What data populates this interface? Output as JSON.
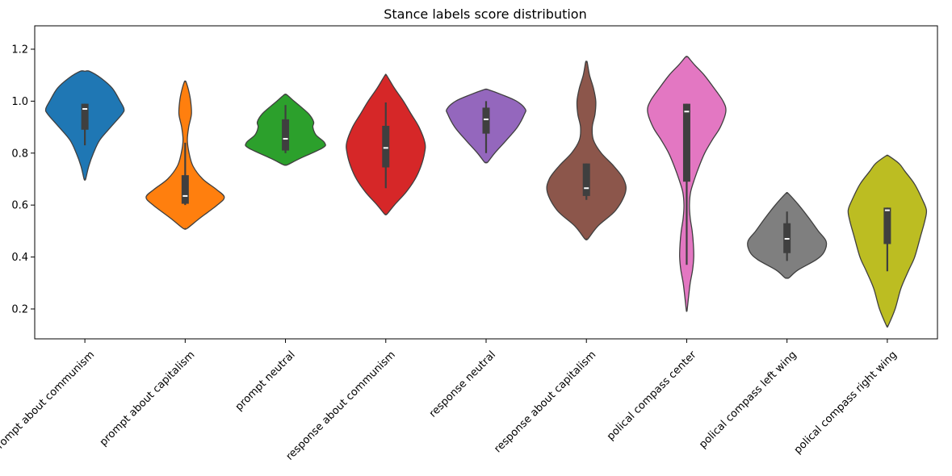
{
  "chart_data": {
    "type": "violin",
    "title": "Stance labels score distribution",
    "xlabel": "",
    "ylabel": "",
    "ylim": [
      0.085,
      1.29
    ],
    "yticks": [
      0.2,
      0.4,
      0.6,
      0.8,
      1.0,
      1.2
    ],
    "ytick_labels": [
      "0.2",
      "0.4",
      "0.6",
      "0.8",
      "1.0",
      "1.2"
    ],
    "grid": false,
    "categories": [
      "prompt about communism",
      "prompt about capitalism",
      "prompt neutral",
      "response about communism",
      "response neutral",
      "response about capitalism",
      "polical compass center",
      "polical compass left wing",
      "polical compass right wing"
    ],
    "series": [
      {
        "color": "#1f77b4",
        "min": 0.7,
        "max": 1.115,
        "whisker_low": 0.83,
        "q1": 0.89,
        "median": 0.97,
        "q3": 0.99,
        "whisker_high": 0.99,
        "density": [
          [
            0.7,
            0.02
          ],
          [
            0.75,
            0.1
          ],
          [
            0.8,
            0.22
          ],
          [
            0.85,
            0.38
          ],
          [
            0.9,
            0.66
          ],
          [
            0.95,
            0.95
          ],
          [
            0.97,
            1.0
          ],
          [
            1.0,
            0.9
          ],
          [
            1.05,
            0.7
          ],
          [
            1.09,
            0.4
          ],
          [
            1.115,
            0.12
          ]
        ]
      },
      {
        "color": "#ff7f0e",
        "min": 0.51,
        "max": 1.075,
        "whisker_low": 0.6,
        "q1": 0.605,
        "median": 0.635,
        "q3": 0.715,
        "whisker_high": 0.84,
        "density": [
          [
            0.51,
            0.05
          ],
          [
            0.55,
            0.38
          ],
          [
            0.6,
            0.82
          ],
          [
            0.63,
            1.0
          ],
          [
            0.66,
            0.8
          ],
          [
            0.7,
            0.45
          ],
          [
            0.75,
            0.2
          ],
          [
            0.8,
            0.1
          ],
          [
            0.85,
            0.055
          ],
          [
            0.9,
            0.09
          ],
          [
            0.95,
            0.16
          ],
          [
            1.0,
            0.14
          ],
          [
            1.04,
            0.09
          ],
          [
            1.075,
            0.02
          ]
        ]
      },
      {
        "color": "#2ca02c",
        "min": 0.755,
        "max": 1.025,
        "whisker_low": 0.8,
        "q1": 0.81,
        "median": 0.855,
        "q3": 0.93,
        "whisker_high": 0.985,
        "density": [
          [
            0.755,
            0.05
          ],
          [
            0.78,
            0.38
          ],
          [
            0.82,
            0.95
          ],
          [
            0.84,
            1.0
          ],
          [
            0.87,
            0.78
          ],
          [
            0.9,
            0.7
          ],
          [
            0.92,
            0.72
          ],
          [
            0.95,
            0.6
          ],
          [
            0.98,
            0.38
          ],
          [
            1.0,
            0.22
          ],
          [
            1.025,
            0.03
          ]
        ]
      },
      {
        "color": "#d62728",
        "min": 0.565,
        "max": 1.1,
        "whisker_low": 0.665,
        "q1": 0.745,
        "median": 0.82,
        "q3": 0.905,
        "whisker_high": 0.995,
        "density": [
          [
            0.565,
            0.03
          ],
          [
            0.6,
            0.22
          ],
          [
            0.65,
            0.52
          ],
          [
            0.7,
            0.75
          ],
          [
            0.75,
            0.9
          ],
          [
            0.8,
            0.99
          ],
          [
            0.84,
            1.0
          ],
          [
            0.9,
            0.85
          ],
          [
            0.95,
            0.65
          ],
          [
            1.0,
            0.45
          ],
          [
            1.05,
            0.22
          ],
          [
            1.1,
            0.02
          ]
        ]
      },
      {
        "color": "#9467bd",
        "min": 0.765,
        "max": 1.045,
        "whisker_low": 0.8,
        "q1": 0.875,
        "median": 0.93,
        "q3": 0.975,
        "whisker_high": 1.0,
        "density": [
          [
            0.765,
            0.04
          ],
          [
            0.8,
            0.22
          ],
          [
            0.85,
            0.52
          ],
          [
            0.9,
            0.8
          ],
          [
            0.95,
            0.98
          ],
          [
            0.97,
            1.0
          ],
          [
            1.0,
            0.78
          ],
          [
            1.025,
            0.4
          ],
          [
            1.045,
            0.04
          ]
        ]
      },
      {
        "color": "#8c564b",
        "min": 0.47,
        "max": 1.15,
        "whisker_low": 0.62,
        "q1": 0.635,
        "median": 0.665,
        "q3": 0.76,
        "whisker_high": 0.76,
        "density": [
          [
            0.47,
            0.04
          ],
          [
            0.52,
            0.3
          ],
          [
            0.58,
            0.75
          ],
          [
            0.65,
            1.0
          ],
          [
            0.7,
            0.95
          ],
          [
            0.75,
            0.7
          ],
          [
            0.8,
            0.38
          ],
          [
            0.85,
            0.18
          ],
          [
            0.9,
            0.15
          ],
          [
            0.95,
            0.22
          ],
          [
            1.0,
            0.24
          ],
          [
            1.05,
            0.18
          ],
          [
            1.1,
            0.08
          ],
          [
            1.15,
            0.02
          ]
        ]
      },
      {
        "color": "#e377c2",
        "min": 0.195,
        "max": 1.17,
        "whisker_low": 0.37,
        "q1": 0.69,
        "median": 0.96,
        "q3": 0.99,
        "whisker_high": 0.99,
        "density": [
          [
            0.195,
            0.01
          ],
          [
            0.25,
            0.05
          ],
          [
            0.3,
            0.09
          ],
          [
            0.35,
            0.15
          ],
          [
            0.4,
            0.18
          ],
          [
            0.45,
            0.17
          ],
          [
            0.5,
            0.14
          ],
          [
            0.55,
            0.09
          ],
          [
            0.6,
            0.07
          ],
          [
            0.65,
            0.1
          ],
          [
            0.7,
            0.2
          ],
          [
            0.75,
            0.32
          ],
          [
            0.8,
            0.46
          ],
          [
            0.85,
            0.65
          ],
          [
            0.9,
            0.86
          ],
          [
            0.96,
            1.0
          ],
          [
            1.0,
            0.93
          ],
          [
            1.05,
            0.7
          ],
          [
            1.1,
            0.45
          ],
          [
            1.14,
            0.2
          ],
          [
            1.17,
            0.03
          ]
        ]
      },
      {
        "color": "#7f7f7f",
        "min": 0.32,
        "max": 0.645,
        "whisker_low": 0.385,
        "q1": 0.415,
        "median": 0.47,
        "q3": 0.53,
        "whisker_high": 0.575,
        "density": [
          [
            0.32,
            0.05
          ],
          [
            0.35,
            0.28
          ],
          [
            0.39,
            0.75
          ],
          [
            0.42,
            0.95
          ],
          [
            0.46,
            1.0
          ],
          [
            0.5,
            0.8
          ],
          [
            0.55,
            0.56
          ],
          [
            0.6,
            0.3
          ],
          [
            0.645,
            0.03
          ]
        ]
      },
      {
        "color": "#bcbd22",
        "min": 0.135,
        "max": 0.79,
        "whisker_low": 0.345,
        "q1": 0.45,
        "median": 0.58,
        "q3": 0.59,
        "whisker_high": 0.59,
        "density": [
          [
            0.135,
            0.02
          ],
          [
            0.2,
            0.2
          ],
          [
            0.28,
            0.35
          ],
          [
            0.35,
            0.55
          ],
          [
            0.4,
            0.7
          ],
          [
            0.48,
            0.85
          ],
          [
            0.54,
            0.96
          ],
          [
            0.58,
            1.0
          ],
          [
            0.62,
            0.9
          ],
          [
            0.68,
            0.7
          ],
          [
            0.73,
            0.45
          ],
          [
            0.76,
            0.3
          ],
          [
            0.79,
            0.03
          ]
        ]
      }
    ]
  }
}
